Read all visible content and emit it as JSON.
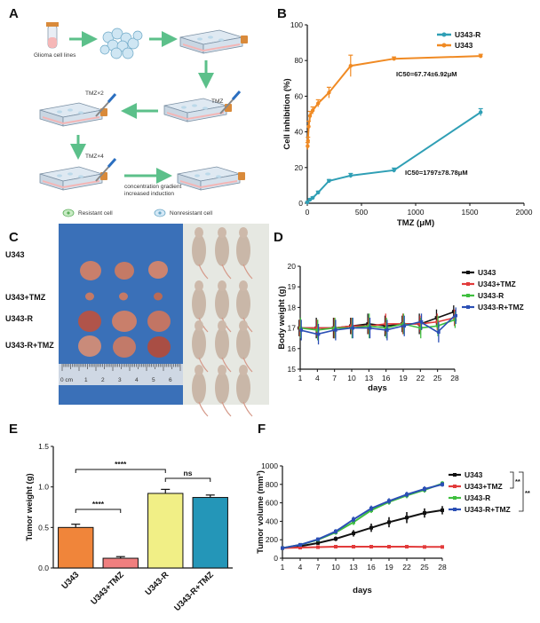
{
  "panels": {
    "a": {
      "label": "A",
      "captions": {
        "glioma_cell_lines": "Glioma cell lines",
        "tmz": "TMZ",
        "tmz_x2": "TMZ×2",
        "tmz_x4": "TMZ×4",
        "gradient_line1": "concentration gradient",
        "gradient_line2": "increased induction",
        "resistant": "Resistant cell",
        "nonresistant": "Nonresistant cell"
      },
      "colors": {
        "arrow": "#5cc08a",
        "medium": "#f3b5b5",
        "flask": "#dfe9f2",
        "cap": "#d98a3a"
      }
    },
    "b": {
      "label": "B"
    },
    "c": {
      "label": "C",
      "rows": [
        "U343",
        "U343+TMZ",
        "U343-R",
        "U343-R+TMZ"
      ],
      "ruler_text": "0 cm",
      "ruler_numbers": [
        "1",
        "2",
        "3",
        "4",
        "5",
        "6"
      ]
    },
    "d": {
      "label": "D"
    },
    "e": {
      "label": "E"
    },
    "f": {
      "label": "F"
    }
  },
  "chart_data": [
    {
      "panel": "B",
      "type": "line",
      "xlabel": "TMZ (μM)",
      "ylabel": "Cell inhibition (%)",
      "xlim": [
        0,
        2000
      ],
      "ylim": [
        0,
        100
      ],
      "xticks": [
        0,
        500,
        1000,
        1500,
        2000
      ],
      "yticks": [
        0,
        20,
        40,
        60,
        80,
        100
      ],
      "legend_position": "top-right",
      "series": [
        {
          "name": "U343-R",
          "color": "#2f9fb5",
          "x": [
            0,
            25,
            50,
            100,
            200,
            400,
            800,
            1600
          ],
          "y": [
            0.5,
            2,
            3,
            6,
            12.5,
            15.5,
            18.5,
            51
          ],
          "err": [
            0.5,
            0.6,
            0.6,
            0.8,
            0.8,
            1.2,
            1.2,
            2
          ]
        },
        {
          "name": "U343",
          "color": "#f08a23",
          "x": [
            3.125,
            6.25,
            12.5,
            25,
            50,
            100,
            200,
            400,
            800,
            1600
          ],
          "y": [
            32,
            35,
            43,
            49,
            52,
            56,
            62,
            77,
            81,
            82.5
          ],
          "err": [
            2,
            2,
            3,
            2.5,
            2,
            2,
            3,
            6,
            1,
            1
          ]
        }
      ],
      "annotations": [
        "IC50=67.74±6.92μM",
        "IC50=1797±78.78μM"
      ]
    },
    {
      "panel": "D",
      "type": "line",
      "xlabel": "days",
      "ylabel": "Body weight (g)",
      "ylim": [
        15,
        20
      ],
      "yticks": [
        15,
        16,
        17,
        18,
        19,
        20
      ],
      "x": [
        1,
        4,
        7,
        10,
        13,
        16,
        19,
        22,
        25,
        28
      ],
      "legend_position": "right",
      "series": [
        {
          "name": "U343",
          "color": "#111111",
          "values": [
            17.0,
            17.0,
            17.0,
            17.1,
            17.2,
            17.1,
            17.2,
            17.2,
            17.5,
            17.8
          ],
          "err": [
            0.4,
            0.5,
            0.5,
            0.4,
            0.5,
            0.5,
            0.4,
            0.5,
            0.4,
            0.3
          ]
        },
        {
          "name": "U343+TMZ",
          "color": "#e23b3b",
          "values": [
            17.0,
            17.0,
            17.0,
            17.1,
            17.1,
            17.2,
            17.2,
            17.2,
            17.3,
            17.5
          ],
          "err": [
            0.4,
            0.4,
            0.5,
            0.4,
            0.4,
            0.5,
            0.5,
            0.4,
            0.4,
            0.4
          ]
        },
        {
          "name": "U343-R",
          "color": "#3fbf3f",
          "values": [
            17.0,
            16.9,
            17.0,
            17.0,
            17.1,
            17.0,
            17.2,
            17.0,
            17.1,
            17.4
          ],
          "err": [
            0.5,
            0.5,
            0.5,
            0.5,
            0.6,
            0.5,
            0.5,
            0.5,
            0.5,
            0.4
          ]
        },
        {
          "name": "U343-R+TMZ",
          "color": "#2b4fb5",
          "values": [
            16.9,
            16.7,
            16.9,
            17.0,
            17.0,
            16.9,
            17.1,
            17.3,
            16.8,
            17.6
          ],
          "err": [
            0.5,
            0.5,
            0.5,
            0.5,
            0.5,
            0.5,
            0.5,
            0.4,
            0.5,
            0.4
          ]
        }
      ]
    },
    {
      "panel": "E",
      "type": "bar",
      "ylabel": "Tumor weight (g)",
      "ylim": [
        0,
        1.5
      ],
      "yticks": [
        0.0,
        0.5,
        1.0,
        1.5
      ],
      "categories": [
        "U343",
        "U343+TMZ",
        "U343-R",
        "U343-R+TMZ"
      ],
      "values": [
        0.5,
        0.12,
        0.92,
        0.87
      ],
      "err": [
        0.04,
        0.02,
        0.05,
        0.03
      ],
      "colors": [
        "#f0853a",
        "#f07f7f",
        "#f1ef86",
        "#2496b8"
      ],
      "significance": [
        {
          "from": 0,
          "to": 1,
          "text": "****"
        },
        {
          "from": 0,
          "to": 2,
          "text": "****"
        },
        {
          "from": 2,
          "to": 3,
          "text": "ns"
        }
      ]
    },
    {
      "panel": "F",
      "type": "line",
      "xlabel": "days",
      "ylabel": "Tumor volume (mm³)",
      "ylim": [
        0,
        1000
      ],
      "yticks": [
        0,
        200,
        400,
        600,
        800,
        1000
      ],
      "x": [
        1,
        4,
        7,
        10,
        13,
        16,
        19,
        22,
        25,
        28
      ],
      "legend_position": "right",
      "series": [
        {
          "name": "U343",
          "color": "#111111",
          "values": [
            110,
            130,
            165,
            210,
            270,
            330,
            390,
            440,
            490,
            520
          ],
          "err": [
            10,
            15,
            20,
            25,
            35,
            45,
            55,
            60,
            50,
            45
          ]
        },
        {
          "name": "U343+TMZ",
          "color": "#e23b3b",
          "values": [
            110,
            115,
            120,
            125,
            125,
            125,
            125,
            125,
            122,
            122
          ],
          "err": [
            5,
            5,
            5,
            5,
            5,
            5,
            5,
            5,
            5,
            5
          ]
        },
        {
          "name": "U343-R",
          "color": "#3fbf3f",
          "values": [
            110,
            145,
            200,
            280,
            390,
            520,
            610,
            680,
            740,
            810
          ],
          "err": [
            10,
            15,
            20,
            25,
            30,
            30,
            30,
            30,
            30,
            25
          ]
        },
        {
          "name": "U343-R+TMZ",
          "color": "#2b4fb5",
          "values": [
            110,
            145,
            205,
            290,
            420,
            540,
            620,
            690,
            750,
            800
          ],
          "err": [
            10,
            15,
            20,
            25,
            30,
            30,
            30,
            30,
            30,
            25
          ]
        }
      ],
      "significance": [
        "**",
        "**"
      ]
    }
  ]
}
